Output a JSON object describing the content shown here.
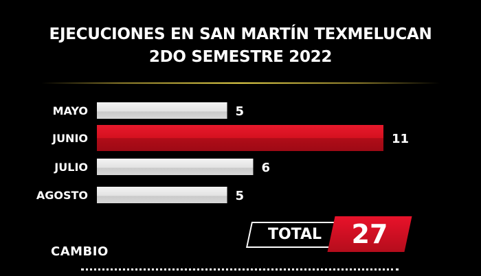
{
  "chart_data": {
    "type": "bar",
    "orientation": "horizontal",
    "title_lines": [
      "EJECUCIONES EN SAN MARTÍN TEXMELUCAN",
      "2DO SEMESTRE 2022"
    ],
    "categories": [
      "MAYO",
      "JUNIO",
      "JULIO",
      "AGOSTO"
    ],
    "values": [
      5,
      11,
      6,
      5
    ],
    "highlight_category": "JUNIO",
    "colors": {
      "default_bar": "#e6e6e6",
      "highlight_bar": "#d4111f",
      "background": "#000000"
    },
    "xlim": [
      0,
      11
    ],
    "grid": false,
    "legend": "none"
  },
  "total": {
    "label": "TOTAL",
    "value": "27"
  },
  "brand": {
    "logo_text": "CAMBIO"
  }
}
